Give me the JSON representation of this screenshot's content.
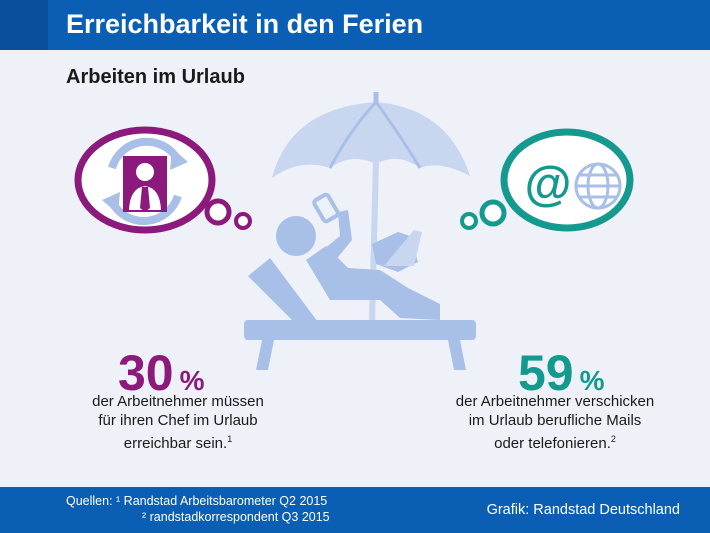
{
  "header": {
    "title": "Erreichbarkeit in den Ferien"
  },
  "subtitle": "Arbeiten im Urlaub",
  "stat_left": {
    "value": "30",
    "unit": "%",
    "lines": [
      "der Arbeitnehmer müssen",
      "für ihren Chef im Urlaub",
      "erreichbar sein."
    ],
    "footnote": "1"
  },
  "stat_right": {
    "value": "59",
    "unit": "%",
    "lines": [
      "der Arbeitnehmer verschicken",
      "im Urlaub berufliche Mails",
      "oder telefonieren."
    ],
    "footnote": "2"
  },
  "footer": {
    "sources_line1": "Quellen: ¹ Randstad Arbeitsbarometer Q2 2015",
    "sources_line2": "² randstadkorrespondent Q3 2015",
    "credit": "Grafik: Randstad Deutschland"
  },
  "icons": {
    "left_bubble": "boss-contact-icon",
    "right_bubble": "email-web-icon",
    "center": "person-on-beach-lounger-icon"
  },
  "colors": {
    "header_blue": "#0a5fb4",
    "purple": "#8b1a7c",
    "teal": "#14998f",
    "illustration_blue": "#a8bfe8"
  }
}
